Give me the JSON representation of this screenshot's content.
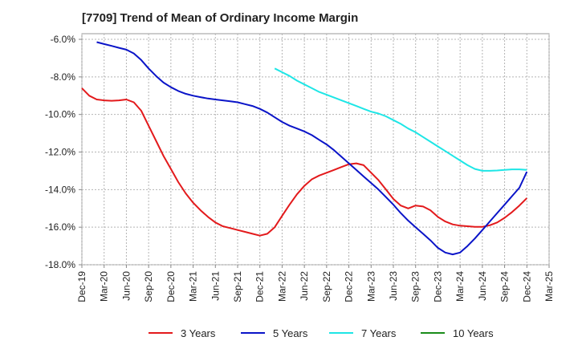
{
  "chart_data": {
    "type": "line",
    "title": "[7709]  Trend of Mean of Ordinary Income Margin",
    "xlabel": "",
    "ylabel": "",
    "x_ticks": [
      "Dec-19",
      "Mar-20",
      "Jun-20",
      "Sep-20",
      "Dec-20",
      "Mar-21",
      "Jun-21",
      "Sep-21",
      "Dec-21",
      "Mar-22",
      "Jun-22",
      "Sep-22",
      "Dec-22",
      "Mar-23",
      "Jun-23",
      "Sep-23",
      "Dec-23",
      "Mar-24",
      "Jun-24",
      "Sep-24",
      "Dec-24",
      "Mar-25"
    ],
    "y_ticks": [
      "-6.0%",
      "-8.0%",
      "-10.0%",
      "-12.0%",
      "-14.0%",
      "-16.0%",
      "-18.0%"
    ],
    "ylim": [
      -18,
      -5.7
    ],
    "grid": true,
    "legend_position": "bottom",
    "series": [
      {
        "name": "3 Years",
        "color": "#e31a1c",
        "x": [
          "Dec-19",
          "Jan-20",
          "Feb-20",
          "Mar-20",
          "Apr-20",
          "May-20",
          "Jun-20",
          "Jul-20",
          "Aug-20",
          "Sep-20",
          "Oct-20",
          "Nov-20",
          "Dec-20",
          "Jan-21",
          "Feb-21",
          "Mar-21",
          "Apr-21",
          "May-21",
          "Jun-21",
          "Jul-21",
          "Aug-21",
          "Sep-21",
          "Oct-21",
          "Nov-21",
          "Dec-21",
          "Jan-22",
          "Feb-22",
          "Mar-22",
          "Apr-22",
          "May-22",
          "Jun-22",
          "Jul-22",
          "Aug-22",
          "Sep-22",
          "Oct-22",
          "Nov-22",
          "Dec-22",
          "Jan-23",
          "Feb-23",
          "Mar-23",
          "Apr-23",
          "May-23",
          "Jun-23",
          "Jul-23",
          "Aug-23",
          "Sep-23",
          "Oct-23",
          "Nov-23",
          "Dec-23",
          "Jan-24",
          "Feb-24",
          "Mar-24",
          "Apr-24",
          "May-24",
          "Jun-24",
          "Jul-24",
          "Aug-24",
          "Sep-24",
          "Oct-24",
          "Nov-24",
          "Dec-24"
        ],
        "values": [
          -8.6,
          -9.0,
          -9.2,
          -9.25,
          -9.27,
          -9.25,
          -9.2,
          -9.35,
          -9.8,
          -10.6,
          -11.4,
          -12.2,
          -12.9,
          -13.6,
          -14.2,
          -14.7,
          -15.1,
          -15.45,
          -15.75,
          -15.95,
          -16.05,
          -16.15,
          -16.25,
          -16.35,
          -16.45,
          -16.35,
          -16.0,
          -15.4,
          -14.8,
          -14.25,
          -13.8,
          -13.45,
          -13.25,
          -13.1,
          -12.95,
          -12.8,
          -12.65,
          -12.6,
          -12.7,
          -13.1,
          -13.5,
          -14.0,
          -14.5,
          -14.85,
          -15.0,
          -14.85,
          -14.9,
          -15.1,
          -15.45,
          -15.7,
          -15.85,
          -15.92,
          -15.95,
          -15.98,
          -15.98,
          -15.9,
          -15.75,
          -15.5,
          -15.2,
          -14.85,
          -14.45
        ]
      },
      {
        "name": "5 Years",
        "color": "#0a14c8",
        "x": [
          "Feb-20",
          "Mar-20",
          "Apr-20",
          "May-20",
          "Jun-20",
          "Jul-20",
          "Aug-20",
          "Sep-20",
          "Oct-20",
          "Nov-20",
          "Dec-20",
          "Jan-21",
          "Feb-21",
          "Mar-21",
          "Apr-21",
          "May-21",
          "Jun-21",
          "Jul-21",
          "Aug-21",
          "Sep-21",
          "Oct-21",
          "Nov-21",
          "Dec-21",
          "Jan-22",
          "Feb-22",
          "Mar-22",
          "Apr-22",
          "May-22",
          "Jun-22",
          "Jul-22",
          "Aug-22",
          "Sep-22",
          "Oct-22",
          "Nov-22",
          "Dec-22",
          "Jan-23",
          "Feb-23",
          "Mar-23",
          "Apr-23",
          "May-23",
          "Jun-23",
          "Jul-23",
          "Aug-23",
          "Sep-23",
          "Oct-23",
          "Nov-23",
          "Dec-23",
          "Jan-24",
          "Feb-24",
          "Mar-24",
          "Apr-24",
          "May-24",
          "Jun-24",
          "Jul-24",
          "Aug-24",
          "Sep-24",
          "Oct-24",
          "Nov-24",
          "Dec-24"
        ],
        "values": [
          -6.15,
          -6.25,
          -6.35,
          -6.45,
          -6.55,
          -6.75,
          -7.1,
          -7.55,
          -7.95,
          -8.3,
          -8.55,
          -8.75,
          -8.9,
          -9.0,
          -9.08,
          -9.15,
          -9.2,
          -9.25,
          -9.3,
          -9.35,
          -9.45,
          -9.55,
          -9.7,
          -9.9,
          -10.15,
          -10.4,
          -10.6,
          -10.75,
          -10.9,
          -11.1,
          -11.35,
          -11.6,
          -11.9,
          -12.25,
          -12.6,
          -12.95,
          -13.3,
          -13.65,
          -14.0,
          -14.4,
          -14.8,
          -15.25,
          -15.65,
          -16.0,
          -16.35,
          -16.7,
          -17.1,
          -17.35,
          -17.45,
          -17.35,
          -17.0,
          -16.6,
          -16.15,
          -15.7,
          -15.25,
          -14.8,
          -14.35,
          -13.9,
          -13.05
        ]
      },
      {
        "name": "7 Years",
        "color": "#1ee6e6",
        "x": [
          "Feb-22",
          "Mar-22",
          "Apr-22",
          "May-22",
          "Jun-22",
          "Jul-22",
          "Aug-22",
          "Sep-22",
          "Oct-22",
          "Nov-22",
          "Dec-22",
          "Jan-23",
          "Feb-23",
          "Mar-23",
          "Apr-23",
          "May-23",
          "Jun-23",
          "Jul-23",
          "Aug-23",
          "Sep-23",
          "Oct-23",
          "Nov-23",
          "Dec-23",
          "Jan-24",
          "Feb-24",
          "Mar-24",
          "Apr-24",
          "May-24",
          "Jun-24",
          "Jul-24",
          "Aug-24",
          "Sep-24",
          "Oct-24",
          "Nov-24",
          "Dec-24"
        ],
        "values": [
          -7.55,
          -7.75,
          -7.95,
          -8.2,
          -8.4,
          -8.6,
          -8.8,
          -8.95,
          -9.1,
          -9.25,
          -9.4,
          -9.55,
          -9.7,
          -9.85,
          -9.95,
          -10.1,
          -10.3,
          -10.5,
          -10.75,
          -10.95,
          -11.2,
          -11.45,
          -11.7,
          -11.95,
          -12.2,
          -12.45,
          -12.7,
          -12.9,
          -13.0,
          -13.0,
          -12.98,
          -12.95,
          -12.92,
          -12.92,
          -12.95
        ]
      },
      {
        "name": "10 Years",
        "color": "#1a8c1a",
        "x": [],
        "values": []
      }
    ]
  }
}
